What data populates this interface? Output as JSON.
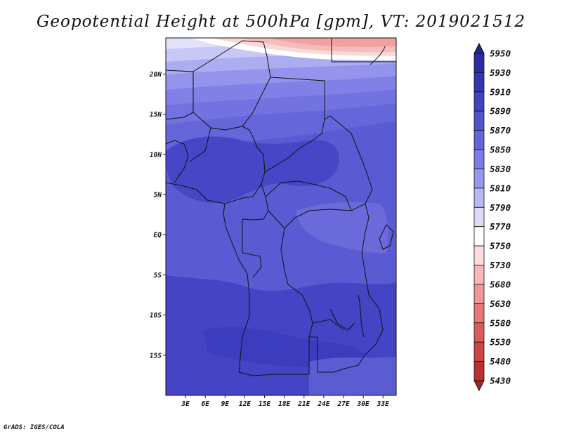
{
  "title": "Geopotential Height at 500hPa [gpm], VT: 2019021512",
  "credit": "GrADS: IGES/COLA",
  "map": {
    "lon_range": [
      0,
      35
    ],
    "lat_range": [
      -20,
      24.5
    ],
    "x_ticks": [
      {
        "value": 3,
        "label": "3E"
      },
      {
        "value": 6,
        "label": "6E"
      },
      {
        "value": 9,
        "label": "9E"
      },
      {
        "value": 12,
        "label": "12E"
      },
      {
        "value": 15,
        "label": "15E"
      },
      {
        "value": 18,
        "label": "18E"
      },
      {
        "value": 21,
        "label": "21E"
      },
      {
        "value": 24,
        "label": "24E"
      },
      {
        "value": 27,
        "label": "27E"
      },
      {
        "value": 30,
        "label": "30E"
      },
      {
        "value": 33,
        "label": "33E"
      }
    ],
    "y_ticks": [
      {
        "value": 20,
        "label": "20N"
      },
      {
        "value": 15,
        "label": "15N"
      },
      {
        "value": 10,
        "label": "10N"
      },
      {
        "value": 5,
        "label": "5N"
      },
      {
        "value": 0,
        "label": "EQ"
      },
      {
        "value": -5,
        "label": "5S"
      },
      {
        "value": -10,
        "label": "10S"
      },
      {
        "value": -15,
        "label": "15S"
      }
    ]
  },
  "colorbar": {
    "levels": [
      {
        "label": "5950",
        "color": "#23238e"
      },
      {
        "label": "5930",
        "color": "#2b2ba2"
      },
      {
        "label": "5910",
        "color": "#3434b4"
      },
      {
        "label": "5890",
        "color": "#4242c4"
      },
      {
        "label": "5870",
        "color": "#5252cf"
      },
      {
        "label": "5850",
        "color": "#6464da"
      },
      {
        "label": "5830",
        "color": "#7c7ce4"
      },
      {
        "label": "5810",
        "color": "#9898ec"
      },
      {
        "label": "5790",
        "color": "#b8b8f3"
      },
      {
        "label": "5770",
        "color": "#dcdcfa"
      },
      {
        "label": "5750",
        "color": "#ffffff"
      },
      {
        "label": "5730",
        "color": "#fcdcdc"
      },
      {
        "label": "5680",
        "color": "#f6b8b8"
      },
      {
        "label": "5630",
        "color": "#ef9797"
      },
      {
        "label": "5580",
        "color": "#e67878"
      },
      {
        "label": "5530",
        "color": "#dc5c5c"
      },
      {
        "label": "5480",
        "color": "#d04444"
      },
      {
        "label": "5430",
        "color": "#bb3030"
      },
      {
        "label": "",
        "color": "#a82323"
      }
    ]
  }
}
